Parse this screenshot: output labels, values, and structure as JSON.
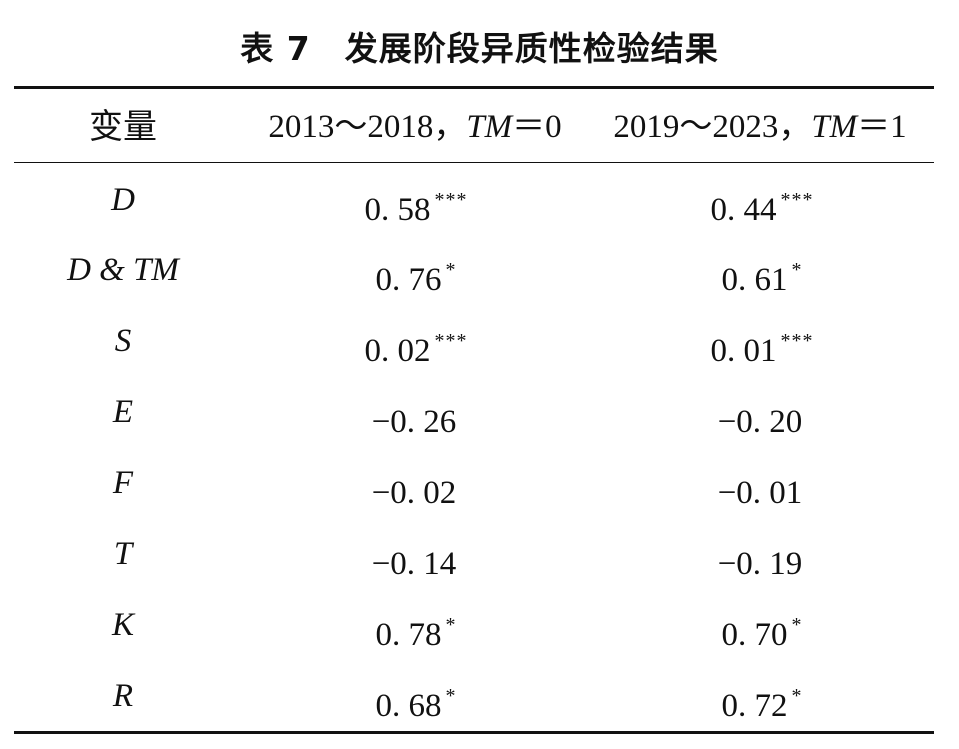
{
  "table": {
    "title": "表 7　发展阶段异质性检验结果",
    "header": {
      "variable": "变量",
      "col1_range": "2013～2018，",
      "col1_var": "TM",
      "col1_eq": "＝0",
      "col2_range": "2019～2023，",
      "col2_var": "TM",
      "col2_eq": "＝1"
    },
    "rows": [
      {
        "variable": "D",
        "col1": "0. 58",
        "col1_sig": "***",
        "col2": "0. 44",
        "col2_sig": "***"
      },
      {
        "variable": "D & TM",
        "col1": "0. 76",
        "col1_sig": "*",
        "col2": "0. 61",
        "col2_sig": "*"
      },
      {
        "variable": "S",
        "col1": "0. 02",
        "col1_sig": "***",
        "col2": "0. 01",
        "col2_sig": "***"
      },
      {
        "variable": "E",
        "col1": "−0. 26",
        "col1_sig": "",
        "col2": "−0. 20",
        "col2_sig": ""
      },
      {
        "variable": "F",
        "col1": "−0. 02",
        "col1_sig": "",
        "col2": "−0. 01",
        "col2_sig": ""
      },
      {
        "variable": "T",
        "col1": "−0. 14",
        "col1_sig": "",
        "col2": "−0. 19",
        "col2_sig": ""
      },
      {
        "variable": "K",
        "col1": "0. 78",
        "col1_sig": "*",
        "col2": "0. 70",
        "col2_sig": "*"
      },
      {
        "variable": "R",
        "col1": "0. 68",
        "col1_sig": "*",
        "col2": "0. 72",
        "col2_sig": "*"
      }
    ]
  }
}
